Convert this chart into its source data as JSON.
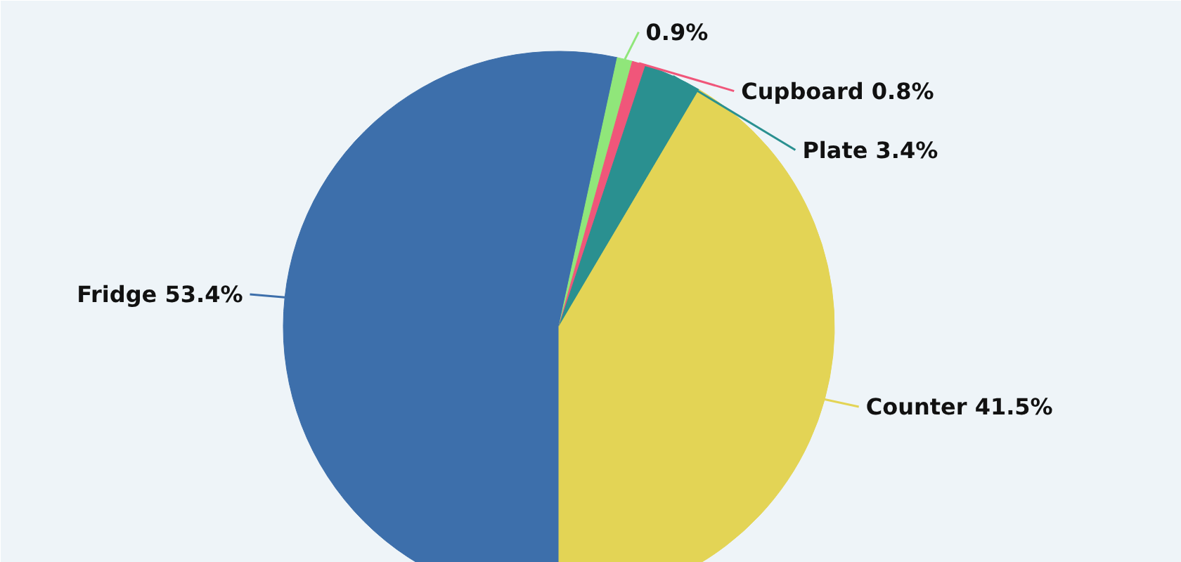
{
  "chart_data": {
    "type": "pie",
    "categories": [
      "Fridge",
      null,
      "Cupboard",
      "Plate",
      "Counter"
    ],
    "values": [
      53.4,
      0.9,
      0.8,
      3.4,
      41.5
    ],
    "colors": [
      "#3d6fab",
      "#90e67a",
      "#f0567a",
      "#2a9090",
      "#e3d455"
    ],
    "value_labels": [
      "53.4%",
      "0.9%",
      "0.8%",
      "3.4%",
      "41.5%"
    ],
    "legend": false
  }
}
